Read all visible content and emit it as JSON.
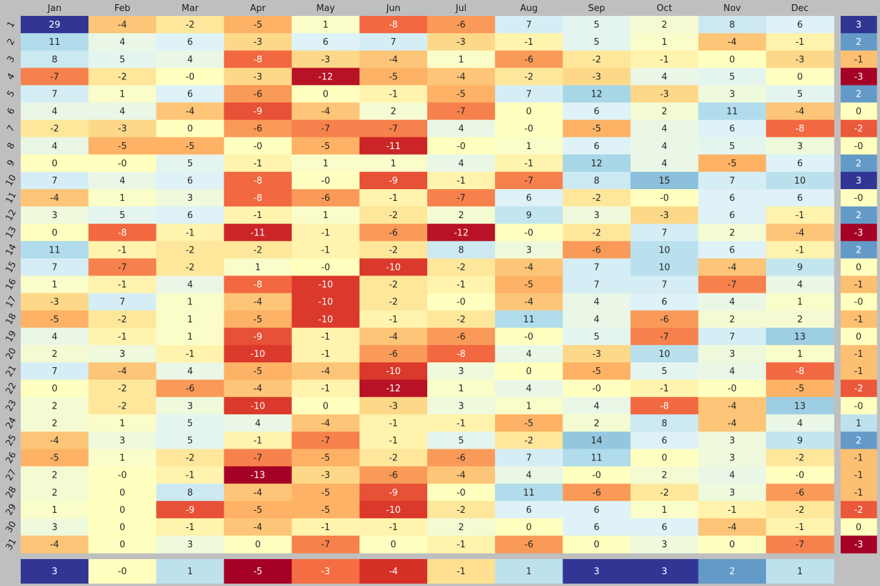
{
  "chart_data": {
    "type": "heatmap",
    "colormap": "RdYlBu",
    "background_color": "#bfbfbf",
    "color_range": [
      -13,
      29
    ],
    "columns": [
      "Jan",
      "Feb",
      "Mar",
      "Apr",
      "May",
      "Jun",
      "Jul",
      "Aug",
      "Sep",
      "Oct",
      "Nov",
      "Dec"
    ],
    "rows": [
      "1",
      "2",
      "3",
      "4",
      "5",
      "6",
      "7",
      "8",
      "9",
      "10",
      "11",
      "12",
      "13",
      "14",
      "15",
      "16",
      "17",
      "18",
      "19",
      "20",
      "21",
      "22",
      "23",
      "24",
      "25",
      "26",
      "27",
      "28",
      "29",
      "30",
      "31"
    ],
    "cells": [
      [
        "29",
        "-4",
        "-2",
        "-5",
        "1",
        "-8",
        "-6",
        "7",
        "5",
        "2",
        "8",
        "6"
      ],
      [
        "11",
        "4",
        "6",
        "-3",
        "6",
        "7",
        "-3",
        "-1",
        "5",
        "1",
        "-4",
        "-1"
      ],
      [
        "8",
        "5",
        "4",
        "-8",
        "-3",
        "-4",
        "1",
        "-6",
        "-2",
        "-1",
        "0",
        "-3"
      ],
      [
        "-7",
        "-2",
        "-0",
        "-3",
        "-12",
        "-5",
        "-4",
        "-2",
        "-3",
        "4",
        "5",
        "0"
      ],
      [
        "7",
        "1",
        "6",
        "-6",
        "0",
        "-1",
        "-5",
        "7",
        "12",
        "-3",
        "3",
        "5"
      ],
      [
        "4",
        "4",
        "-4",
        "-9",
        "-4",
        "2",
        "-7",
        "0",
        "6",
        "2",
        "11",
        "-4"
      ],
      [
        "-2",
        "-3",
        "0",
        "-6",
        "-7",
        "-7",
        "4",
        "-0",
        "-5",
        "4",
        "6",
        "-8"
      ],
      [
        "4",
        "-5",
        "-5",
        "-0",
        "-5",
        "-11",
        "-0",
        "1",
        "6",
        "4",
        "5",
        "3"
      ],
      [
        "0",
        "-0",
        "5",
        "-1",
        "1",
        "1",
        "4",
        "-1",
        "12",
        "4",
        "-5",
        "6"
      ],
      [
        "7",
        "4",
        "6",
        "-8",
        "-0",
        "-9",
        "-1",
        "-7",
        "8",
        "15",
        "7",
        "10"
      ],
      [
        "-4",
        "1",
        "3",
        "-8",
        "-6",
        "-1",
        "-7",
        "6",
        "-2",
        "-0",
        "6",
        "6"
      ],
      [
        "3",
        "5",
        "6",
        "-1",
        "1",
        "-2",
        "2",
        "9",
        "3",
        "-3",
        "6",
        "-1"
      ],
      [
        "0",
        "-8",
        "-1",
        "-11",
        "-1",
        "-6",
        "-12",
        "-0",
        "-2",
        "7",
        "2",
        "-4"
      ],
      [
        "11",
        "-1",
        "-2",
        "-2",
        "-1",
        "-2",
        "8",
        "3",
        "-6",
        "10",
        "6",
        "-1"
      ],
      [
        "7",
        "-7",
        "-2",
        "1",
        "-0",
        "-10",
        "-2",
        "-4",
        "7",
        "10",
        "-4",
        "9"
      ],
      [
        "1",
        "-1",
        "4",
        "-8",
        "-10",
        "-2",
        "-1",
        "-5",
        "7",
        "7",
        "-7",
        "4"
      ],
      [
        "-3",
        "7",
        "1",
        "-4",
        "-10",
        "-2",
        "-0",
        "-4",
        "4",
        "6",
        "4",
        "1"
      ],
      [
        "-5",
        "-2",
        "1",
        "-5",
        "-10",
        "-1",
        "-2",
        "11",
        "4",
        "-6",
        "2",
        "2"
      ],
      [
        "4",
        "-1",
        "1",
        "-9",
        "-1",
        "-4",
        "-6",
        "-0",
        "5",
        "-7",
        "7",
        "13"
      ],
      [
        "2",
        "3",
        "-1",
        "-10",
        "-1",
        "-6",
        "-8",
        "4",
        "-3",
        "10",
        "3",
        "1"
      ],
      [
        "7",
        "-4",
        "4",
        "-5",
        "-4",
        "-10",
        "3",
        "0",
        "-5",
        "5",
        "4",
        "-8"
      ],
      [
        "0",
        "-2",
        "-6",
        "-4",
        "-1",
        "-12",
        "1",
        "4",
        "-0",
        "-1",
        "-0",
        "-5"
      ],
      [
        "2",
        "-2",
        "3",
        "-10",
        "0",
        "-3",
        "3",
        "1",
        "4",
        "-8",
        "-4",
        "13"
      ],
      [
        "2",
        "1",
        "5",
        "4",
        "-4",
        "-1",
        "-1",
        "-5",
        "2",
        "8",
        "-4",
        "4"
      ],
      [
        "-4",
        "3",
        "5",
        "-1",
        "-7",
        "-1",
        "5",
        "-2",
        "14",
        "6",
        "3",
        "9"
      ],
      [
        "-5",
        "1",
        "-2",
        "-7",
        "-5",
        "-2",
        "-6",
        "7",
        "11",
        "0",
        "3",
        "-2"
      ],
      [
        "2",
        "-0",
        "-1",
        "-13",
        "-3",
        "-6",
        "-4",
        "4",
        "-0",
        "2",
        "4",
        "-0"
      ],
      [
        "2",
        "0",
        "8",
        "-4",
        "-5",
        "-9",
        "-0",
        "11",
        "-6",
        "-2",
        "3",
        "-6"
      ],
      [
        "1",
        "0",
        "-9",
        "-5",
        "-5",
        "-10",
        "-2",
        "6",
        "6",
        "1",
        "-1",
        "-2"
      ],
      [
        "3",
        "0",
        "-1",
        "-4",
        "-1",
        "-1",
        "2",
        "0",
        "6",
        "6",
        "-4",
        "-1"
      ],
      [
        "-4",
        "0",
        "3",
        "0",
        "-7",
        "0",
        "-1",
        "-6",
        "0",
        "3",
        "0",
        "-7"
      ]
    ],
    "row_summary": [
      "3",
      "2",
      "-1",
      "-3",
      "2",
      "0",
      "-2",
      "-0",
      "2",
      "3",
      "-0",
      "2",
      "-3",
      "2",
      "0",
      "-1",
      "-0",
      "-1",
      "0",
      "-1",
      "-1",
      "-2",
      "-0",
      "1",
      "2",
      "-1",
      "-1",
      "-1",
      "-2",
      "0",
      "-3"
    ],
    "row_summary_range": [
      -3,
      3
    ],
    "column_summary": [
      "3",
      "-0",
      "1",
      "-5",
      "-3",
      "-4",
      "-1",
      "1",
      "3",
      "3",
      "2",
      "1"
    ],
    "column_summary_range": [
      -5,
      3
    ]
  }
}
